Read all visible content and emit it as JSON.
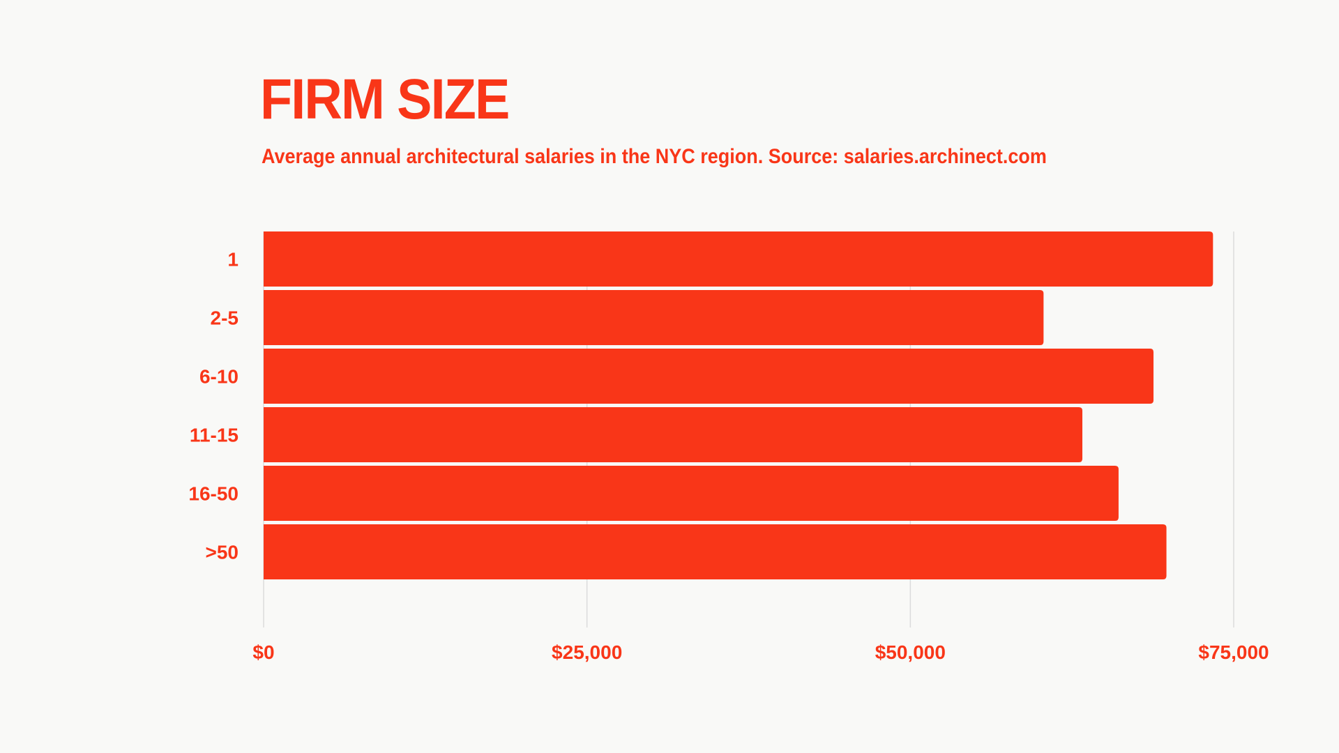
{
  "chart_data": {
    "type": "bar",
    "orientation": "horizontal",
    "title": "FIRM SIZE",
    "subtitle": "Average annual architectural salaries in the NYC region. Source: salaries.archinect.com",
    "categories": [
      "1",
      "2-5",
      "6-10",
      "11-15",
      "16-50",
      ">50"
    ],
    "values": [
      73400,
      60300,
      68800,
      63300,
      66100,
      69800
    ],
    "xlim": [
      0,
      75000
    ],
    "xticks": [
      0,
      25000,
      50000,
      75000
    ],
    "xtick_labels": [
      "$0",
      "$25,000",
      "$50,000",
      "$75,000"
    ],
    "xlabel": "",
    "ylabel": "",
    "grid": "vertical",
    "bar_color": "#f93618",
    "text_color": "#f93618",
    "background": "#f9f9f7"
  }
}
